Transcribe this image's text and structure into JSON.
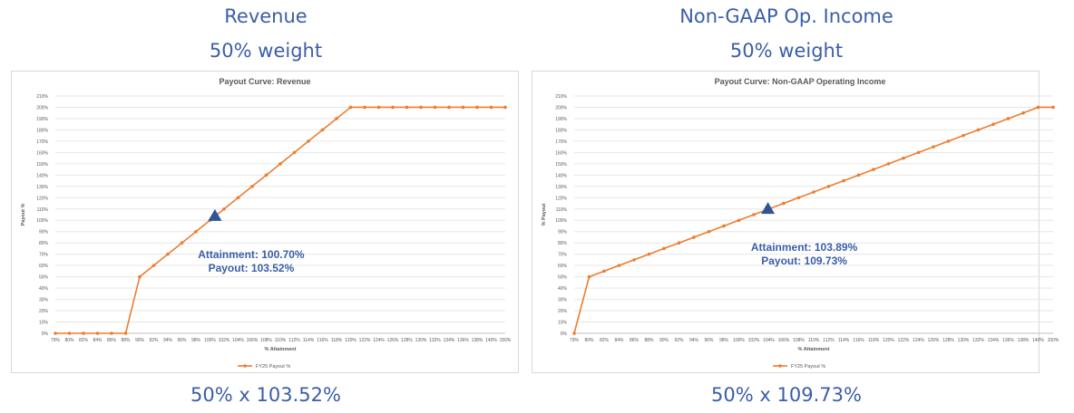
{
  "panels": [
    {
      "header_title": "Revenue",
      "header_weight": "50% weight",
      "formula": "50% x 103.52%",
      "attainment_label": "Attainment: 100.70%",
      "payout_label": "Payout: 103.52%"
    },
    {
      "header_title": "Non-GAAP Op. Income",
      "header_weight": "50% weight",
      "formula": "50% x 109.73%",
      "attainment_label": "Attainment: 103.89%",
      "payout_label": "Payout: 109.73%"
    }
  ],
  "colors": {
    "line": "#ed7d31",
    "marker": "#2e5597",
    "annotation": "#3b5ea8",
    "grid": "#e6e6e6"
  },
  "chart_data": [
    {
      "type": "line",
      "title": "Payout Curve: Revenue",
      "xlabel": "% Attainment",
      "ylabel": "Payout %",
      "ylim": [
        0,
        210
      ],
      "y_ticks": [
        0,
        10,
        20,
        30,
        40,
        50,
        60,
        70,
        80,
        90,
        100,
        110,
        120,
        130,
        140,
        150,
        160,
        170,
        180,
        190,
        200,
        210
      ],
      "x_categories": [
        "79%",
        "80%",
        "82%",
        "84%",
        "86%",
        "88%",
        "90%",
        "92%",
        "94%",
        "96%",
        "98%",
        "100%",
        "102%",
        "104%",
        "106%",
        "108%",
        "110%",
        "112%",
        "114%",
        "116%",
        "118%",
        "120%",
        "122%",
        "124%",
        "126%",
        "128%",
        "130%",
        "132%",
        "134%",
        "136%",
        "138%",
        "140%",
        "150%"
      ],
      "series": [
        {
          "name": "FY25 Payout %",
          "values": [
            0,
            0,
            0,
            0,
            0,
            0,
            50,
            60,
            70,
            80,
            90,
            100,
            110,
            120,
            130,
            140,
            150,
            160,
            170,
            180,
            190,
            200,
            200,
            200,
            200,
            200,
            200,
            200,
            200,
            200,
            200,
            200,
            200
          ]
        }
      ],
      "marker": {
        "attainment": 100.7,
        "payout": 103.52,
        "shape": "triangle"
      },
      "grid": true,
      "legend": "bottom"
    },
    {
      "type": "line",
      "title": "Payout Curve: Non-GAAP Operating Income",
      "xlabel": "% Attainment",
      "ylabel": "% Payout",
      "ylim": [
        0,
        210
      ],
      "y_ticks": [
        0,
        10,
        20,
        30,
        40,
        50,
        60,
        70,
        80,
        90,
        100,
        110,
        120,
        130,
        140,
        150,
        160,
        170,
        180,
        190,
        200,
        210
      ],
      "x_categories": [
        "79%",
        "80%",
        "82%",
        "84%",
        "86%",
        "88%",
        "90%",
        "92%",
        "94%",
        "96%",
        "98%",
        "100%",
        "102%",
        "104%",
        "106%",
        "108%",
        "110%",
        "112%",
        "114%",
        "116%",
        "118%",
        "120%",
        "122%",
        "124%",
        "126%",
        "128%",
        "130%",
        "132%",
        "134%",
        "136%",
        "138%",
        "140%",
        "150%"
      ],
      "series": [
        {
          "name": "FY25 Payout %",
          "values": [
            0,
            50,
            55,
            60,
            65,
            70,
            75,
            80,
            85,
            90,
            95,
            100,
            105,
            110,
            115,
            120,
            125,
            130,
            135,
            140,
            145,
            150,
            155,
            160,
            165,
            170,
            175,
            180,
            185,
            190,
            195,
            200,
            200
          ]
        }
      ],
      "marker": {
        "attainment": 103.89,
        "payout": 109.73,
        "shape": "triangle"
      },
      "grid": true,
      "legend": "bottom"
    }
  ]
}
